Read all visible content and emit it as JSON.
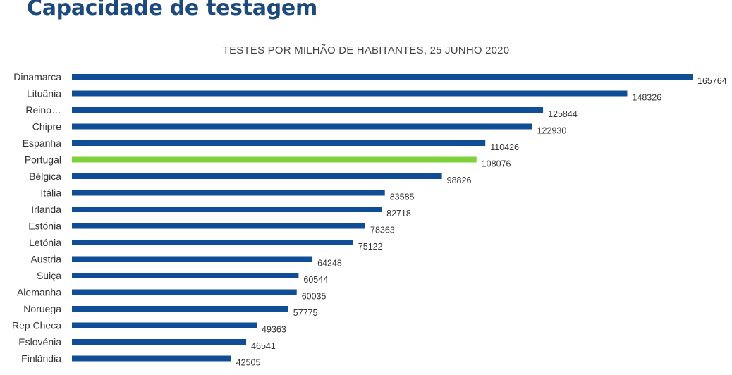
{
  "header": {
    "title": "Capacidade de testagem"
  },
  "chart_data": {
    "type": "bar",
    "orientation": "horizontal",
    "title": "TESTES POR MILHÃO DE HABITANTES, 25 JUNHO 2020",
    "xlabel": "",
    "ylabel": "",
    "grid": false,
    "legend": "none",
    "categories": [
      "Dinamarca",
      "Lituânia",
      "Reino…",
      "Chipre",
      "Espanha",
      "Portugal",
      "Bélgica",
      "Itália",
      "Irlanda",
      "Estónia",
      "Letónia",
      "Austria",
      "Suiça",
      "Alemanha",
      "Noruega",
      "Rep Checa",
      "Eslovénia",
      "Finlândia"
    ],
    "values": [
      165764,
      148326,
      125844,
      122930,
      110426,
      108076,
      98826,
      83585,
      82718,
      78363,
      75122,
      64248,
      60544,
      60035,
      57775,
      49363,
      46541,
      42505
    ],
    "data_labels": [
      "165764",
      "148326",
      "125844",
      "122930",
      "110426",
      "108076",
      "98826",
      "83585",
      "82718",
      "78363",
      "75122",
      "64248",
      "60544",
      "60035",
      "57775",
      "49363",
      "46541",
      "42505"
    ],
    "xlim": [
      0,
      165764
    ],
    "colors": {
      "default": "#0f4e96",
      "highlight": "#7fd13b"
    },
    "highlight_category": "Portugal"
  }
}
